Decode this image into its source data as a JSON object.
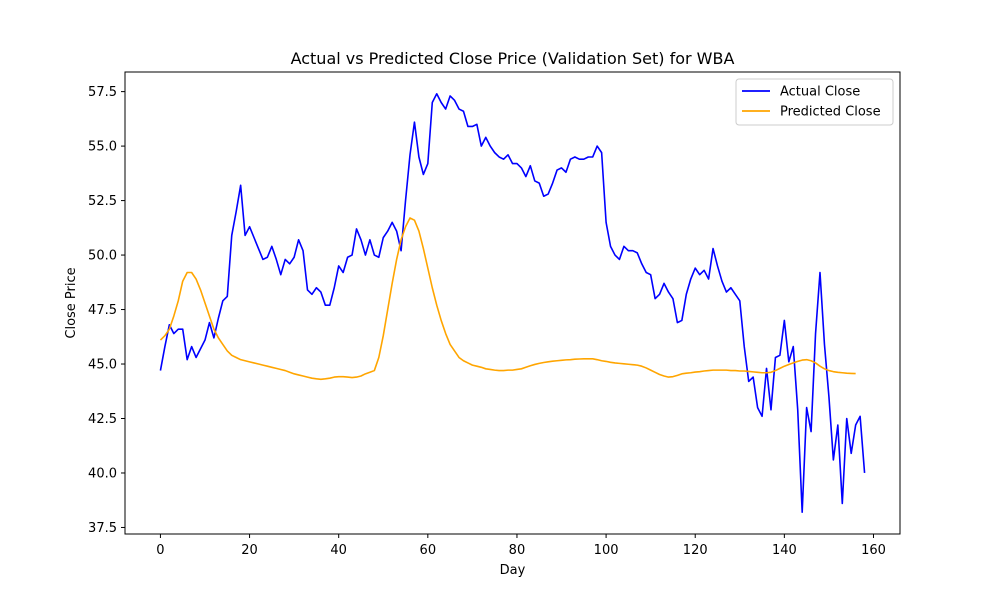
{
  "chart_data": {
    "type": "line",
    "title": "Actual vs Predicted Close Price (Validation Set) for WBA",
    "xlabel": "Day",
    "ylabel": "Close Price",
    "xlim": [
      -7.95,
      165.95
    ],
    "ylim": [
      37.2,
      58.4
    ],
    "xticks": [
      0,
      20,
      40,
      60,
      80,
      100,
      120,
      140,
      160
    ],
    "yticks": [
      37.5,
      40.0,
      42.5,
      45.0,
      47.5,
      50.0,
      52.5,
      55.0,
      57.5
    ],
    "grid": false,
    "legend_position": "top-right",
    "series": [
      {
        "name": "Actual Close",
        "color": "#0000ff",
        "values": [
          44.7,
          45.8,
          46.8,
          46.4,
          46.6,
          46.6,
          45.2,
          45.8,
          45.3,
          45.7,
          46.1,
          46.9,
          46.2,
          47.1,
          47.9,
          48.1,
          50.9,
          52.0,
          53.2,
          50.9,
          51.3,
          50.8,
          50.3,
          49.8,
          49.9,
          50.4,
          49.8,
          49.1,
          49.8,
          49.6,
          49.9,
          50.7,
          50.2,
          48.4,
          48.2,
          48.5,
          48.3,
          47.7,
          47.7,
          48.5,
          49.5,
          49.2,
          49.9,
          50.0,
          51.2,
          50.7,
          50.0,
          50.7,
          50.0,
          49.9,
          50.8,
          51.1,
          51.5,
          51.1,
          50.2,
          52.5,
          54.6,
          56.1,
          54.5,
          53.7,
          54.2,
          57.0,
          57.4,
          57.0,
          56.7,
          57.3,
          57.1,
          56.7,
          56.6,
          55.9,
          55.9,
          56.0,
          55.0,
          55.4,
          55.0,
          54.7,
          54.5,
          54.4,
          54.6,
          54.2,
          54.2,
          54.0,
          53.6,
          54.1,
          53.4,
          53.3,
          52.7,
          52.8,
          53.3,
          53.9,
          54.0,
          53.8,
          54.4,
          54.5,
          54.4,
          54.4,
          54.5,
          54.5,
          55.0,
          54.7,
          51.5,
          50.4,
          50.0,
          49.8,
          50.4,
          50.2,
          50.2,
          50.1,
          49.6,
          49.2,
          49.1,
          48.0,
          48.2,
          48.7,
          48.3,
          48.0,
          46.9,
          47.0,
          48.2,
          48.9,
          49.4,
          49.1,
          49.3,
          48.9,
          50.3,
          49.5,
          48.8,
          48.3,
          48.5,
          48.2,
          47.9,
          45.8,
          44.2,
          44.4,
          43.0,
          42.6,
          44.8,
          42.9,
          45.3,
          45.4,
          47.0,
          45.1,
          45.8,
          42.9,
          38.2,
          43.0,
          41.9,
          46.4,
          49.2,
          45.9,
          43.5,
          40.6,
          42.2,
          38.6,
          42.5,
          40.9,
          42.2,
          42.6,
          40.0
        ]
      },
      {
        "name": "Predicted Close",
        "color": "#ffa500",
        "values": [
          46.1,
          46.3,
          46.6,
          47.2,
          47.9,
          48.8,
          49.2,
          49.2,
          48.9,
          48.4,
          47.8,
          47.2,
          46.6,
          46.2,
          45.9,
          45.6,
          45.4,
          45.3,
          45.2,
          45.15,
          45.1,
          45.05,
          45.0,
          44.95,
          44.9,
          44.85,
          44.8,
          44.75,
          44.7,
          44.62,
          44.55,
          44.5,
          44.45,
          44.4,
          44.35,
          44.32,
          44.3,
          44.32,
          44.35,
          44.4,
          44.42,
          44.42,
          44.4,
          44.38,
          44.4,
          44.45,
          44.55,
          44.62,
          44.7,
          45.3,
          46.3,
          47.5,
          48.7,
          49.8,
          50.7,
          51.3,
          51.7,
          51.6,
          51.1,
          50.3,
          49.4,
          48.5,
          47.7,
          47.0,
          46.4,
          45.9,
          45.6,
          45.3,
          45.15,
          45.05,
          44.95,
          44.9,
          44.85,
          44.78,
          44.75,
          44.72,
          44.7,
          44.7,
          44.72,
          44.72,
          44.75,
          44.78,
          44.85,
          44.92,
          44.98,
          45.03,
          45.07,
          45.1,
          45.13,
          45.15,
          45.17,
          45.19,
          45.2,
          45.22,
          45.23,
          45.24,
          45.24,
          45.24,
          45.2,
          45.15,
          45.12,
          45.08,
          45.05,
          45.03,
          45.01,
          44.99,
          44.97,
          44.95,
          44.9,
          44.82,
          44.72,
          44.62,
          44.52,
          44.45,
          44.4,
          44.42,
          44.48,
          44.55,
          44.58,
          44.6,
          44.63,
          44.65,
          44.68,
          44.7,
          44.72,
          44.72,
          44.72,
          44.72,
          44.7,
          44.7,
          44.68,
          44.68,
          44.66,
          44.64,
          44.62,
          44.6,
          44.6,
          44.62,
          44.7,
          44.8,
          44.9,
          44.98,
          45.05,
          45.12,
          45.18,
          45.2,
          45.15,
          45.05,
          44.9,
          44.78,
          44.7,
          44.65,
          44.62,
          44.6,
          44.58,
          44.57,
          44.56
        ]
      }
    ]
  }
}
